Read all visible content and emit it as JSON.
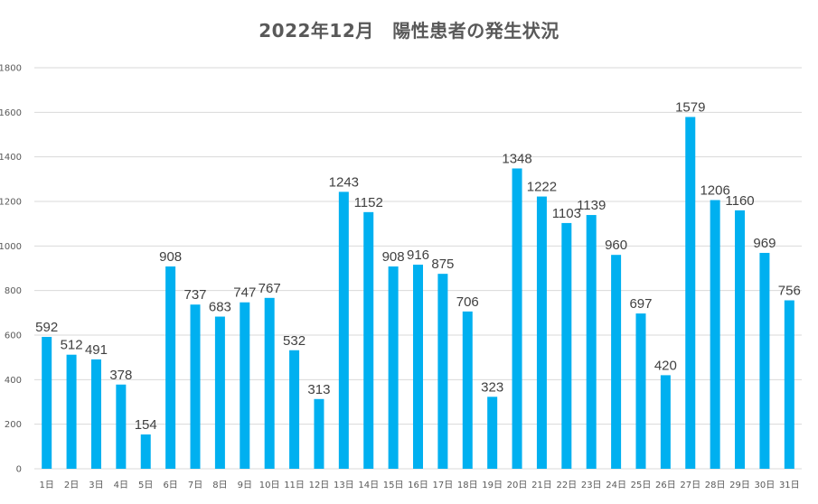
{
  "chart_data": {
    "type": "bar",
    "title": "2022年12月　陽性患者の発生状況",
    "xlabel": "",
    "ylabel": "",
    "ylim": [
      0,
      1800
    ],
    "yticks": [
      0,
      200,
      400,
      600,
      800,
      1000,
      1200,
      1400,
      1600,
      1800
    ],
    "grid": true,
    "categories": [
      "1日",
      "2日",
      "3日",
      "4日",
      "5日",
      "6日",
      "7日",
      "8日",
      "9日",
      "10日",
      "11日",
      "12日",
      "13日",
      "14日",
      "15日",
      "16日",
      "17日",
      "18日",
      "19日",
      "20日",
      "21日",
      "22日",
      "23日",
      "24日",
      "25日",
      "26日",
      "27日",
      "28日",
      "29日",
      "30日",
      "31日"
    ],
    "values": [
      592,
      512,
      491,
      378,
      154,
      908,
      737,
      683,
      747,
      767,
      532,
      313,
      1243,
      1152,
      908,
      916,
      875,
      706,
      323,
      1348,
      1222,
      1103,
      1139,
      960,
      697,
      420,
      1579,
      1206,
      1160,
      969,
      756
    ],
    "bar_color": "#00B0F0",
    "grid_color": "#D9D9D9",
    "data_labels": true
  }
}
